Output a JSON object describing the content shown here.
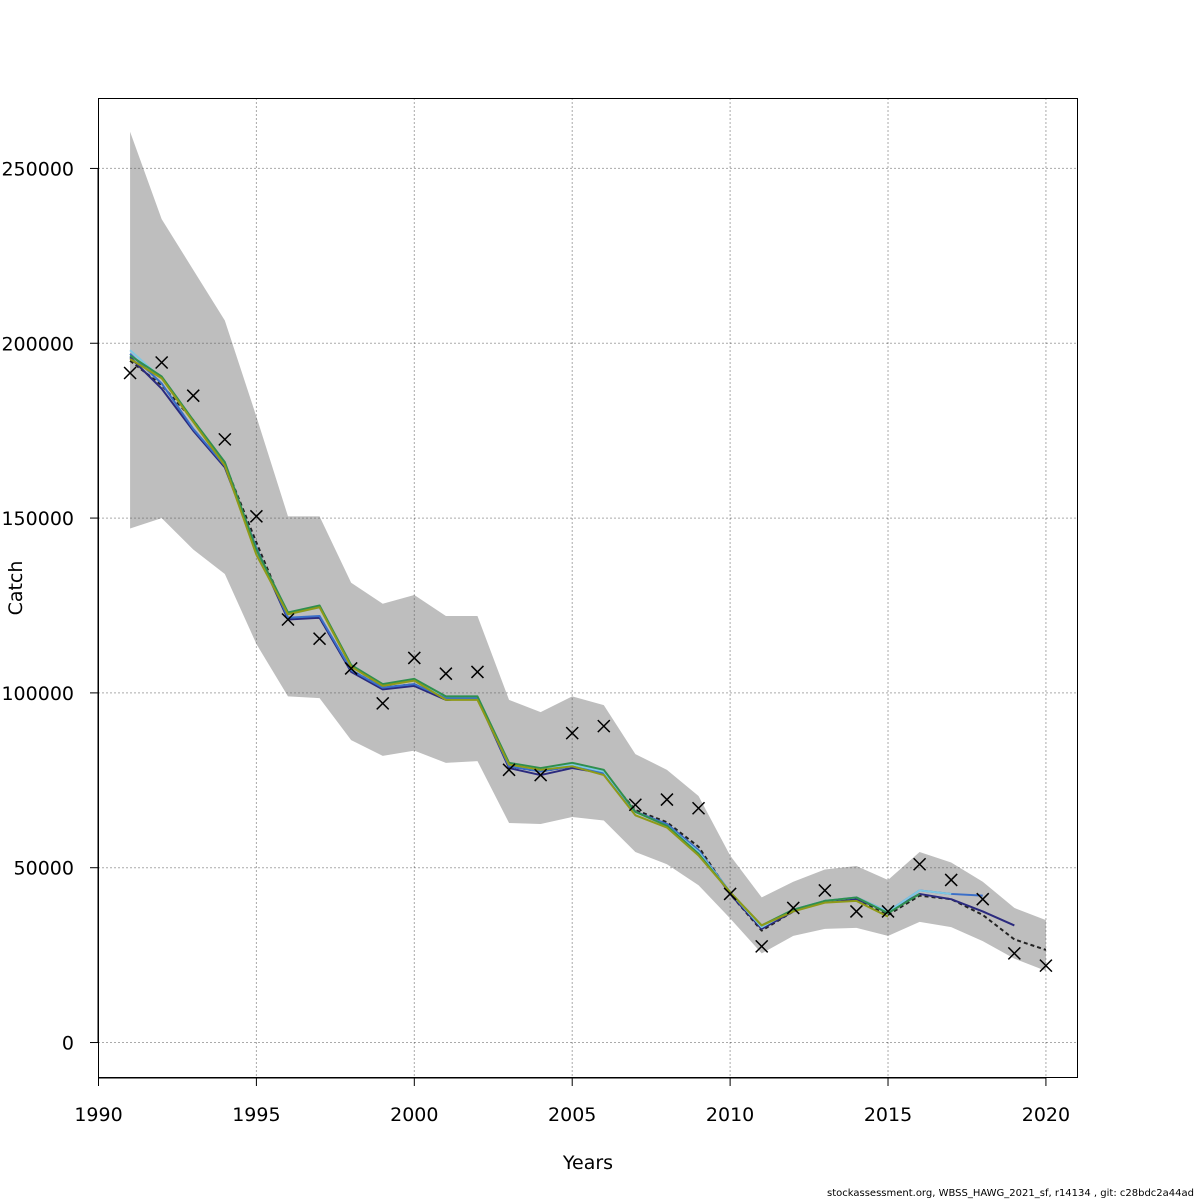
{
  "chart_data": {
    "type": "line",
    "xlabel": "Years",
    "ylabel": "Catch",
    "xlim": [
      1990,
      2021
    ],
    "ylim": [
      -10000,
      270000
    ],
    "x_ticks": [
      1990,
      1995,
      2000,
      2005,
      2010,
      2015,
      2020
    ],
    "y_ticks": [
      0,
      50000,
      100000,
      150000,
      200000,
      250000
    ],
    "x_tick_labels": [
      "1990",
      "1995",
      "2000",
      "2005",
      "2010",
      "2015",
      "2020"
    ],
    "y_tick_labels": [
      "0",
      "50000",
      "100000",
      "150000",
      "200000",
      "250000"
    ],
    "grid": true,
    "confidence_band": {
      "x": [
        1991,
        1992,
        1993,
        1994,
        1995,
        1996,
        1997,
        1998,
        1999,
        2000,
        2001,
        2002,
        2003,
        2004,
        2005,
        2006,
        2007,
        2008,
        2009,
        2010,
        2011,
        2012,
        2013,
        2014,
        2015,
        2016,
        2017,
        2018,
        2019,
        2020
      ],
      "lower": [
        147000,
        150000,
        141000,
        134000,
        114000,
        99000,
        98500,
        86500,
        82000,
        83500,
        80000,
        80500,
        62800,
        62500,
        64500,
        63500,
        54500,
        51000,
        45000,
        35500,
        25500,
        30500,
        32500,
        32800,
        30500,
        34500,
        33000,
        29000,
        24000,
        20500
      ],
      "upper": [
        260500,
        235500,
        221000,
        206500,
        179000,
        150500,
        150500,
        131500,
        125500,
        128000,
        122000,
        122000,
        98000,
        94500,
        99000,
        96500,
        82500,
        78000,
        70500,
        53500,
        41500,
        46000,
        49500,
        50500,
        46500,
        54500,
        51500,
        46000,
        38500,
        35000
      ],
      "color": "#bebebe"
    },
    "observed": {
      "marker": "x",
      "x": [
        1991,
        1992,
        1993,
        1994,
        1995,
        1996,
        1997,
        1998,
        1999,
        2000,
        2001,
        2002,
        2003,
        2004,
        2005,
        2006,
        2007,
        2008,
        2009,
        2010,
        2011,
        2012,
        2013,
        2014,
        2015,
        2016,
        2017,
        2018,
        2019,
        2020
      ],
      "y": [
        191500,
        194500,
        185000,
        172500,
        150500,
        121000,
        115500,
        107000,
        97000,
        110000,
        105500,
        106000,
        78000,
        76500,
        88500,
        90500,
        68000,
        69500,
        67000,
        42500,
        27500,
        38500,
        43500,
        37500,
        37500,
        51000,
        46500,
        41000,
        25500,
        22000
      ]
    },
    "series": [
      {
        "color": "#222222",
        "dashed": true,
        "x": [
          1991,
          1992,
          1993,
          1994,
          1995,
          1996,
          1997,
          1998,
          1999,
          2000,
          2001,
          2002,
          2003,
          2004,
          2005,
          2006,
          2007,
          2008,
          2009,
          2010,
          2011,
          2012,
          2013,
          2014,
          2015,
          2016,
          2017,
          2018,
          2019,
          2020
        ],
        "y": [
          195000,
          188000,
          178000,
          165500,
          143000,
          121500,
          121500,
          106500,
          101500,
          102500,
          98000,
          98500,
          79000,
          77500,
          79000,
          77000,
          66500,
          63000,
          56000,
          42500,
          32000,
          37500,
          40500,
          41000,
          36500,
          42000,
          41000,
          36500,
          29500,
          26500
        ]
      },
      {
        "color": "#2b2a7e",
        "x": [
          1991,
          1992,
          1993,
          1994,
          1995,
          1996,
          1997,
          1998,
          1999,
          2000,
          2001,
          2002,
          2003,
          2004,
          2005,
          2006,
          2007,
          2008,
          2009,
          2010,
          2011,
          2012,
          2013,
          2014,
          2015,
          2016,
          2017,
          2018,
          2019
        ],
        "y": [
          196000,
          187000,
          175000,
          164500,
          141000,
          121000,
          121500,
          106000,
          101000,
          102000,
          98000,
          98500,
          78500,
          76500,
          78500,
          77000,
          66000,
          62500,
          55000,
          42500,
          32500,
          37500,
          40500,
          41000,
          37500,
          42500,
          41000,
          37500,
          33500
        ]
      },
      {
        "color": "#3a6ec8",
        "x": [
          1991,
          1992,
          1993,
          1994,
          1995,
          1996,
          1997,
          1998,
          1999,
          2000,
          2001,
          2002,
          2003,
          2004,
          2005,
          2006,
          2007,
          2008,
          2009,
          2010,
          2011,
          2012,
          2013,
          2014,
          2015,
          2016,
          2017,
          2018
        ],
        "y": [
          197000,
          188500,
          175500,
          165000,
          141500,
          121500,
          122000,
          106500,
          101500,
          102500,
          98500,
          98500,
          79000,
          77500,
          79000,
          77000,
          66000,
          62500,
          55000,
          43000,
          33000,
          38000,
          40500,
          41500,
          37500,
          43500,
          42500,
          42000
        ]
      },
      {
        "color": "#7ec8e3",
        "x": [
          1991,
          1992,
          1993,
          1994,
          1995,
          1996,
          1997,
          1998,
          1999,
          2000,
          2001,
          2002,
          2003,
          2004,
          2005,
          2006,
          2007,
          2008,
          2009,
          2010,
          2011,
          2012,
          2013,
          2014,
          2015,
          2016,
          2017
        ],
        "y": [
          198000,
          190000,
          177500,
          165500,
          141000,
          122500,
          124500,
          107500,
          102500,
          103500,
          99000,
          99000,
          79500,
          78000,
          79500,
          77500,
          66000,
          62000,
          54500,
          43000,
          33000,
          38000,
          40500,
          41500,
          37500,
          43500,
          42500
        ]
      },
      {
        "color": "#2f8f4e",
        "x": [
          1991,
          1992,
          1993,
          1994,
          1995,
          1996,
          1997,
          1998,
          1999,
          2000,
          2001,
          2002,
          2003,
          2004,
          2005,
          2006,
          2007,
          2008,
          2009,
          2010,
          2011,
          2012,
          2013,
          2014,
          2015,
          2016
        ],
        "y": [
          196500,
          190500,
          178000,
          166000,
          141000,
          123000,
          125000,
          108000,
          102500,
          104000,
          99000,
          99000,
          80000,
          78500,
          80000,
          78000,
          66000,
          62000,
          54000,
          43000,
          33500,
          38000,
          40500,
          41500,
          37000,
          42500
        ]
      },
      {
        "color": "#8f9a18",
        "x": [
          1991,
          1992,
          1993,
          1994,
          1995,
          1996,
          1997,
          1998,
          1999,
          2000,
          2001,
          2002,
          2003,
          2004,
          2005,
          2006,
          2007,
          2008,
          2009,
          2010,
          2011,
          2012,
          2013,
          2014,
          2015
        ],
        "y": [
          195500,
          190000,
          177500,
          165000,
          139500,
          122500,
          124500,
          107500,
          102000,
          103500,
          98000,
          98000,
          79500,
          78000,
          79000,
          76500,
          65000,
          61500,
          53500,
          43000,
          33500,
          37500,
          40000,
          40500,
          36000
        ]
      }
    ]
  },
  "footer": {
    "text": "stockassessment.org, WBSS_HAWG_2021_sf, r14134 , git: c28bdc2a44ad"
  }
}
